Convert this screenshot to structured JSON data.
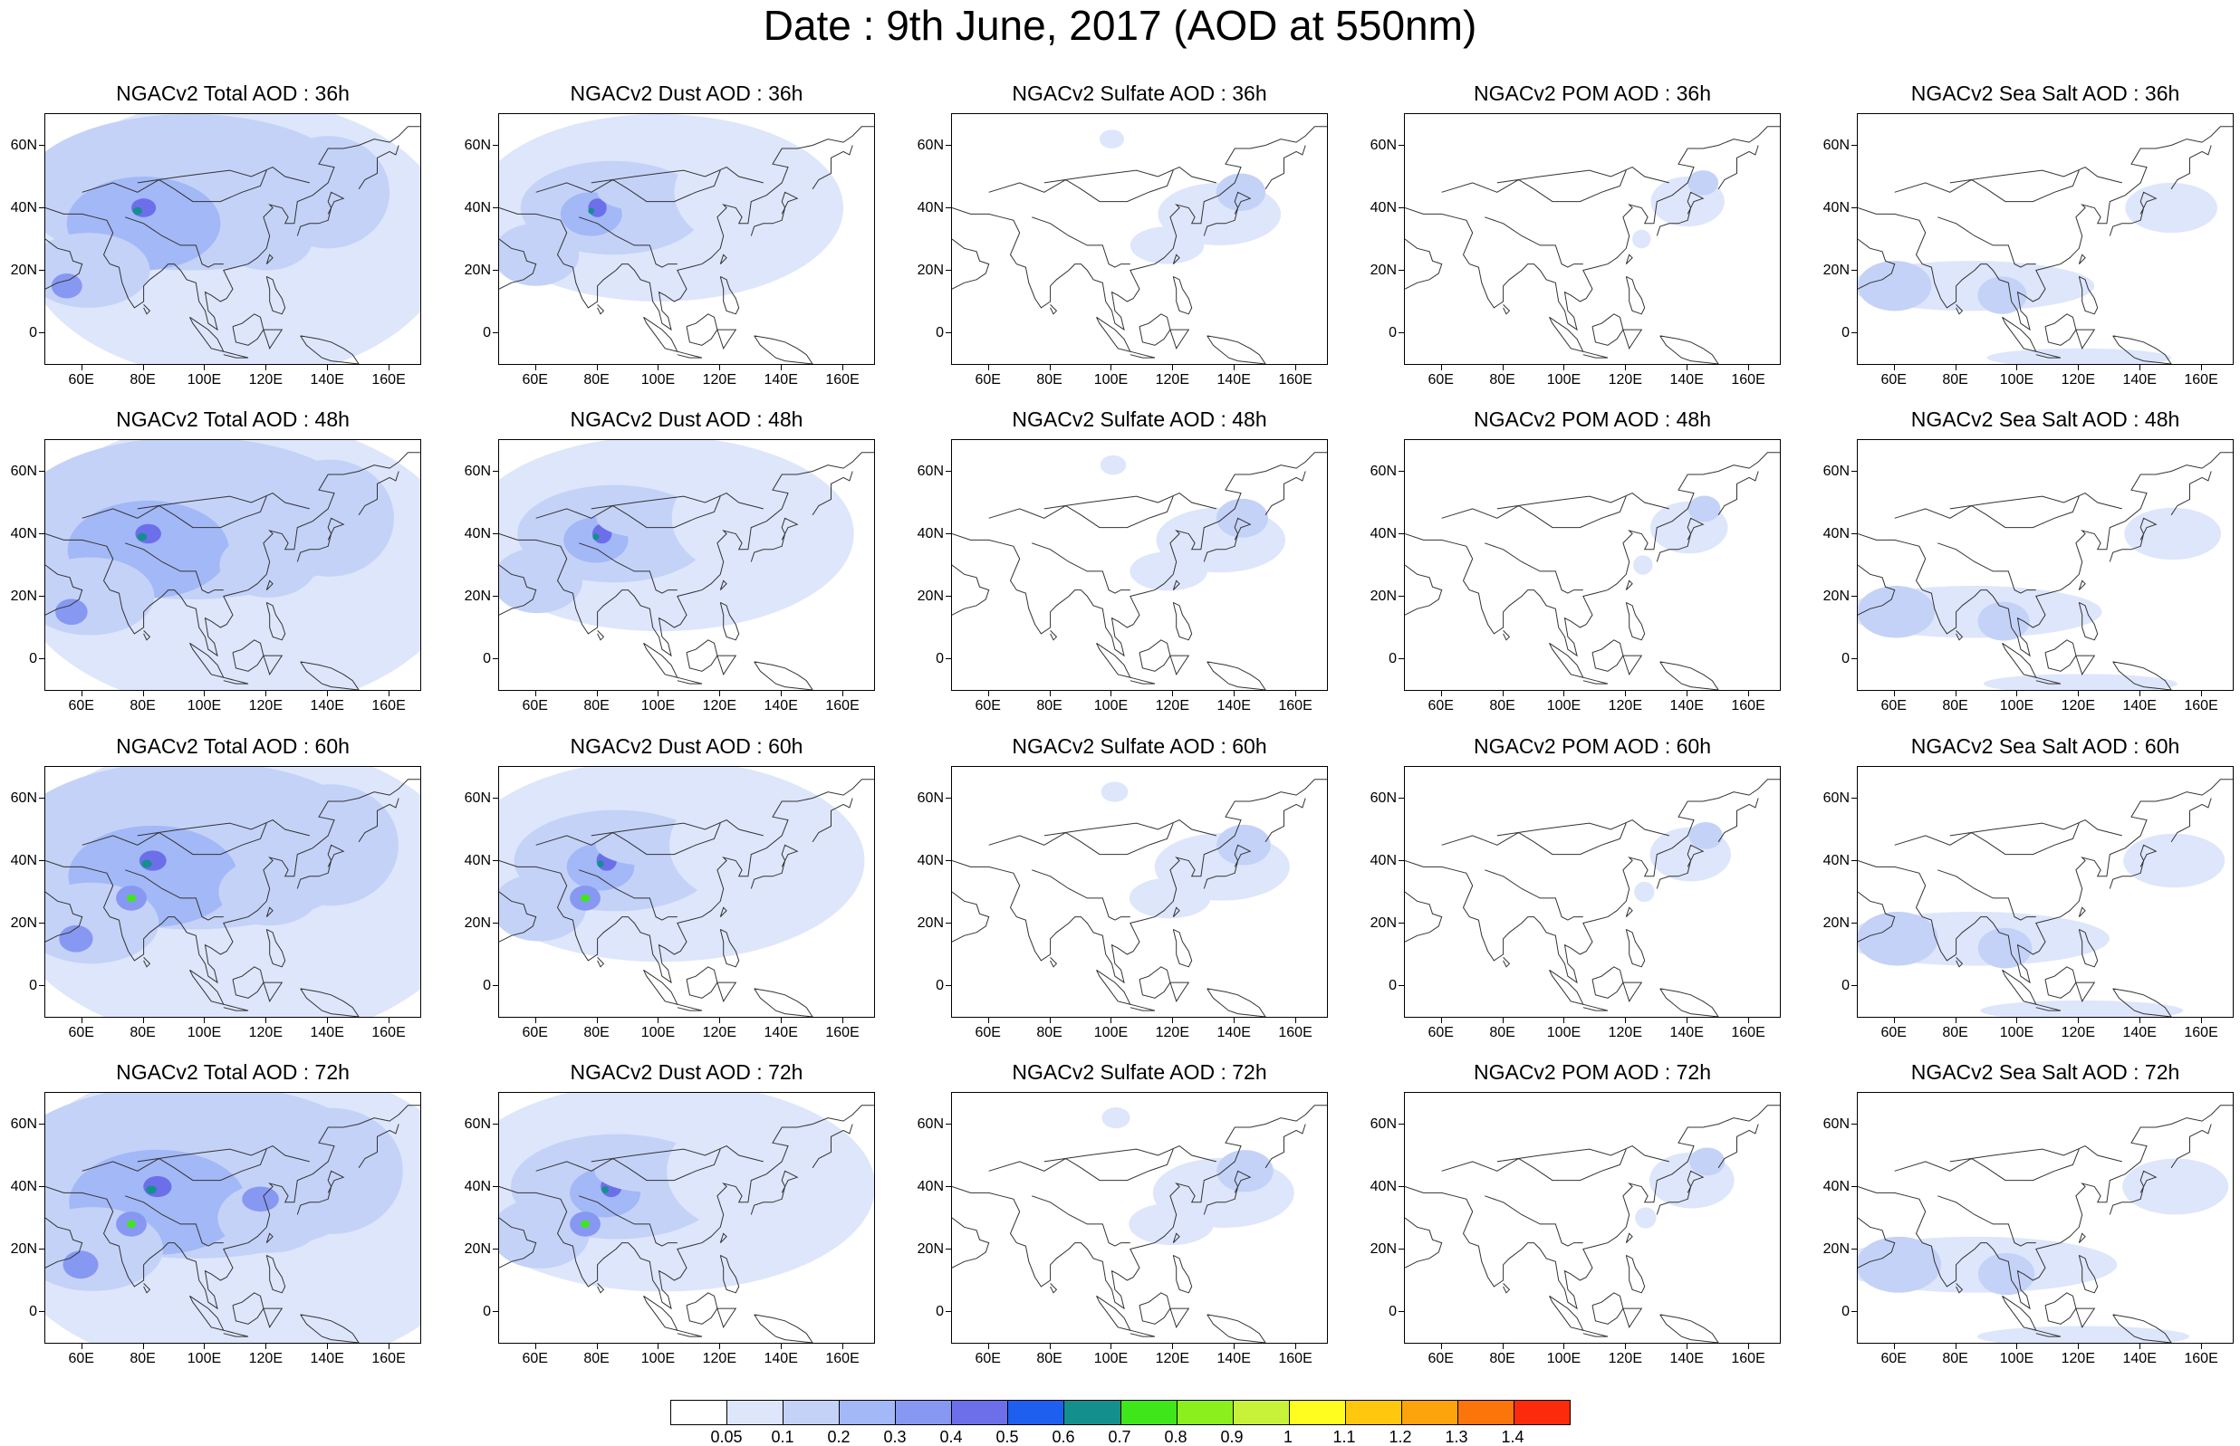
{
  "title": "Date : 9th June, 2017 (AOD at 550nm)",
  "panels": [
    [
      "NGACv2 Total AOD : 36h",
      "NGACv2 Dust AOD : 36h",
      "NGACv2 Sulfate AOD : 36h",
      "NGACv2 POM AOD : 36h",
      "NGACv2 Sea Salt AOD : 36h"
    ],
    [
      "NGACv2 Total AOD : 48h",
      "NGACv2 Dust AOD : 48h",
      "NGACv2 Sulfate AOD : 48h",
      "NGACv2 POM AOD : 48h",
      "NGACv2 Sea Salt AOD : 48h"
    ],
    [
      "NGACv2 Total AOD : 60h",
      "NGACv2 Dust AOD : 60h",
      "NGACv2 Sulfate AOD : 60h",
      "NGACv2 POM AOD : 60h",
      "NGACv2 Sea Salt AOD : 60h"
    ],
    [
      "NGACv2 Total AOD : 72h",
      "NGACv2 Dust AOD : 72h",
      "NGACv2 Sulfate AOD : 72h",
      "NGACv2 POM AOD : 72h",
      "NGACv2 Sea Salt  AOD : 72h"
    ]
  ],
  "lat_labels": [
    "60N",
    "40N",
    "20N",
    "0"
  ],
  "lat_values": [
    60,
    40,
    20,
    0
  ],
  "lon_labels": [
    "60E",
    "80E",
    "100E",
    "120E",
    "140E",
    "160E"
  ],
  "lon_values": [
    60,
    80,
    100,
    120,
    140,
    160
  ],
  "map_extent": {
    "lon": [
      48,
      170
    ],
    "lat": [
      -10,
      70
    ]
  },
  "colorbar": {
    "labels": [
      "0.05",
      "0.1",
      "0.2",
      "0.3",
      "0.4",
      "0.5",
      "0.6",
      "0.7",
      "0.8",
      "0.9",
      "1",
      "1.1",
      "1.2",
      "1.3",
      "1.4"
    ],
    "colors": [
      "#ffffff",
      "#dde6fb",
      "#c4d2f8",
      "#a3b8f6",
      "#8798f2",
      "#6d6fea",
      "#1f5fef",
      "#13908e",
      "#3fe61a",
      "#8bee1d",
      "#c8f23a",
      "#fffd1f",
      "#ffc80e",
      "#fda30c",
      "#fb750b",
      "#fb2b0c"
    ]
  }
}
